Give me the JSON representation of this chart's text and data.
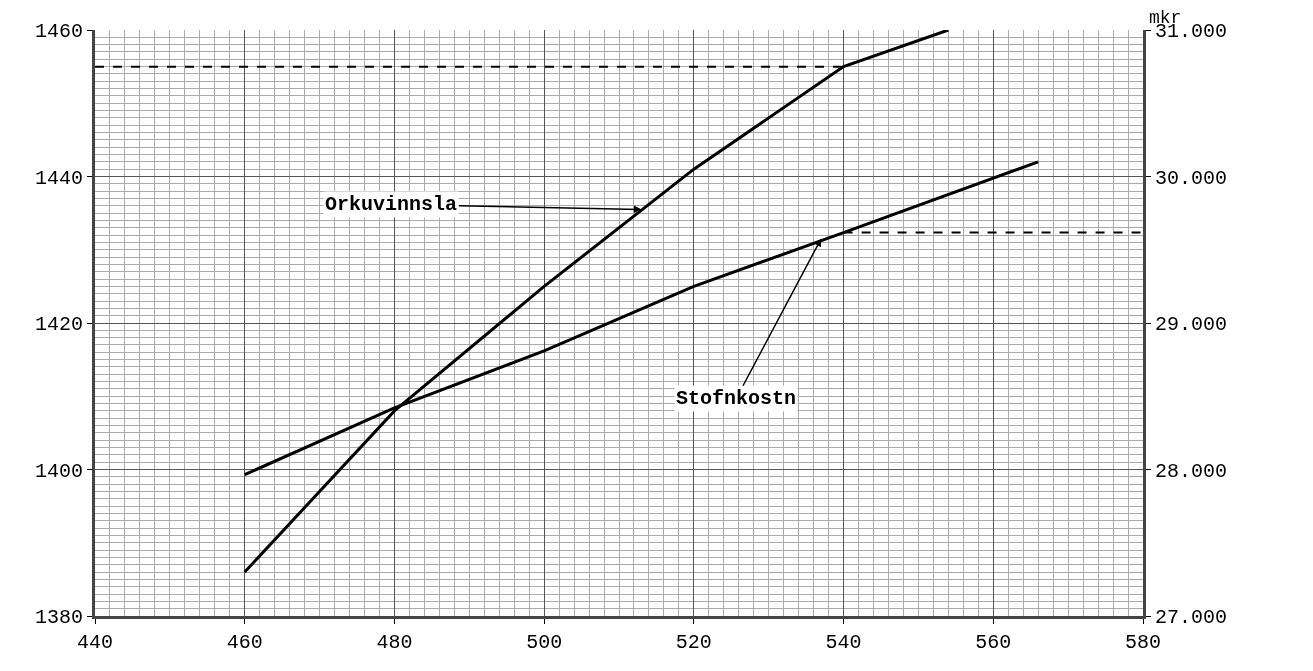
{
  "chart_data": {
    "type": "line",
    "y2label": "mkr",
    "x": [
      460,
      480,
      500,
      520,
      540,
      554
    ],
    "series": [
      {
        "color": "#000000",
        "values": [
          1386,
          1408,
          1425,
          1441,
          1455,
          1460
        ]
      },
      {
        "color": "#000000",
        "axis": "y2",
        "x": [
          460,
          480,
          500,
          520,
          540,
          566
        ],
        "values": [
          27965,
          28420,
          28810,
          29250,
          29617,
          30100
        ]
      },
      {
        "color": "#000000",
        "x": [
          440,
          540
        ],
        "values": [
          1455,
          1455
        ],
        "line_style": "dashed"
      },
      {
        "color": "#000000",
        "axis": "y2",
        "x": [
          540,
          580
        ],
        "values": [
          29617,
          29617
        ],
        "line_style": "dashed"
      }
    ],
    "xlim": [
      440,
      580
    ],
    "xticks": [
      440,
      460,
      480,
      500,
      520,
      540,
      560,
      580
    ],
    "ylim": [
      1380,
      1460
    ],
    "yticks": [
      1380,
      1400,
      1420,
      1440,
      1460
    ],
    "y2lim": [
      27000,
      31000
    ],
    "y2ticks": [
      {
        "value": 27000,
        "label": "27.000"
      },
      {
        "value": 28000,
        "label": "28.000"
      },
      {
        "value": 29000,
        "label": "29.000"
      },
      {
        "value": 30000,
        "label": "30.000"
      },
      {
        "value": 31000,
        "label": "31.000"
      }
    ],
    "annotations": [
      {
        "text": "Orkuvinnsla",
        "x": 513,
        "y": 1435.5
      },
      {
        "text": "Stofnkostn",
        "x": 537,
        "y": 1431.5
      }
    ],
    "grid": true,
    "marker": "none",
    "line_style": "solid"
  }
}
